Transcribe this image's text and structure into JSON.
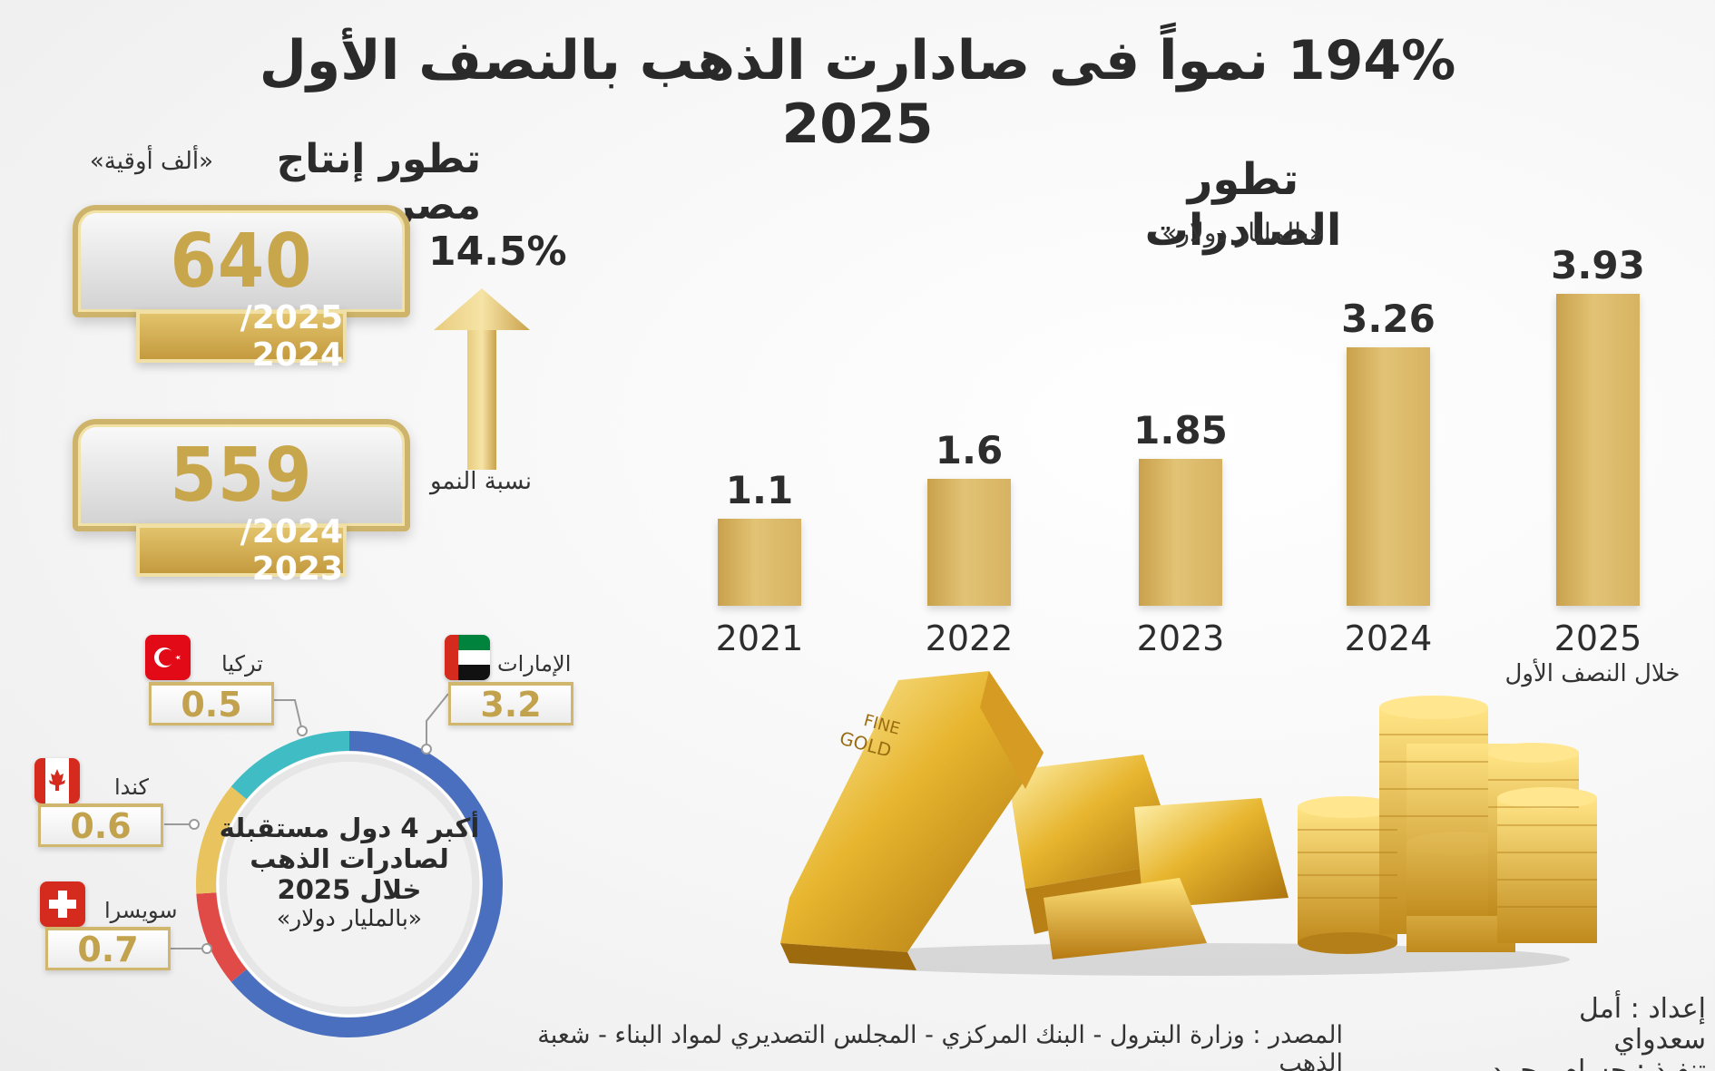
{
  "title": "194% نمواً فى صادارت الذهب بالنصف الأول 2025",
  "production": {
    "title": "تطور إنتاج مصر",
    "unit": "«ألف أوقية»",
    "items": [
      {
        "value": "640",
        "period": "2025/ 2024"
      },
      {
        "value": "559",
        "period": "2024/ 2023"
      }
    ],
    "growth_value": "14.5%",
    "growth_label": "نسبة النمو"
  },
  "exports": {
    "title": "تطور الصادرات",
    "unit": "«بالمليار دولار»",
    "note_2025": "خلال النصف الأول"
  },
  "importers": {
    "center_lines": [
      "أكبر 4 دول مستقبلة",
      "لصادرات الذهب",
      "خلال 2025"
    ],
    "center_unit": "«بالمليار دولار»",
    "countries": [
      {
        "name": "الإمارات",
        "value": "3.2",
        "color": "#4a6fbf"
      },
      {
        "name": "تركيا",
        "value": "0.5",
        "color": "#e04a47"
      },
      {
        "name": "كندا",
        "value": "0.6",
        "color": "#e9c35e"
      },
      {
        "name": "سويسرا",
        "value": "0.7",
        "color": "#3fbcc4"
      }
    ]
  },
  "credits": {
    "prepared": "إعداد : أمل سعدواي",
    "executed": "تنفيذ : حسام محمد"
  },
  "source": "المصدر : وزارة البترول - البنك المركزي - المجلس التصديري لمواد البناء - شعبة الذهب",
  "chart_data": [
    {
      "type": "bar",
      "title": "تطور الصادرات",
      "subtitle": "«بالمليار دولار»",
      "categories": [
        "2021",
        "2022",
        "2023",
        "2024",
        "2025"
      ],
      "values": [
        1.1,
        1.6,
        1.85,
        3.26,
        3.93
      ],
      "value_labels": [
        "1.1",
        "1.6",
        "1.85",
        "3.26",
        "3.93"
      ],
      "ylim": [
        0,
        4
      ],
      "color": "#d6b362"
    },
    {
      "type": "pie",
      "title": "أكبر 4 دول مستقبلة لصادرات الذهب خلال 2025",
      "categories": [
        "الإمارات",
        "تركيا",
        "كندا",
        "سويسرا"
      ],
      "values": [
        3.2,
        0.5,
        0.6,
        0.7
      ],
      "colors": [
        "#4a6fbf",
        "#e04a47",
        "#e9c35e",
        "#3fbcc4"
      ]
    }
  ]
}
